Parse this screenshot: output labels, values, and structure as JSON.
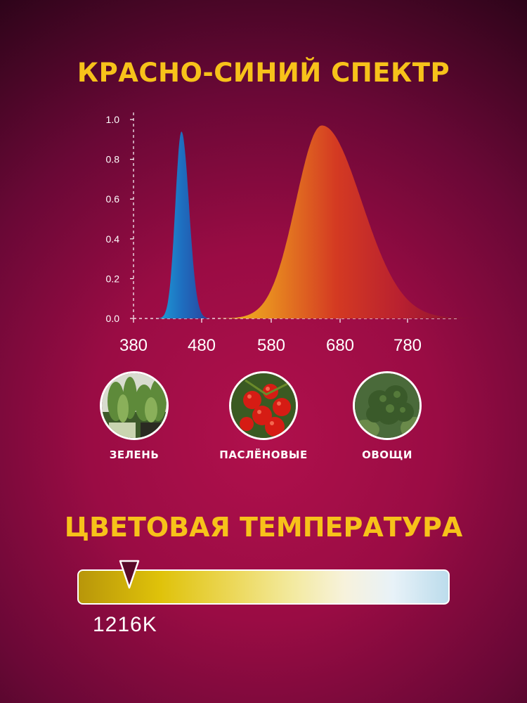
{
  "spectrum_title": "КРАСНО-СИНИЙ СПЕКТР",
  "chart_data": {
    "type": "area",
    "x_ticks": [
      "380",
      "480",
      "580",
      "680",
      "780"
    ],
    "y_ticks": [
      "0.0",
      "0.2",
      "0.4",
      "0.6",
      "0.8",
      "1.0"
    ],
    "xlim": [
      340,
      870
    ],
    "ylim": [
      0,
      1.0
    ],
    "series": [
      {
        "color_start": "#1e6fc0",
        "color_end": "#2a3f9a",
        "peak_x": 450,
        "peak_y": 0.94,
        "left_sigma": 9,
        "right_sigma": 11
      },
      {
        "color_start": "#e8b020",
        "color_end": "#9a1838",
        "peak_x": 655,
        "peak_y": 0.97,
        "left_sigma": 38,
        "right_sigma": 58
      }
    ]
  },
  "plants": [
    {
      "label": "ЗЕЛЕНЬ",
      "icon": "herbs-photo"
    },
    {
      "label": "ПАСЛЁНОВЫЕ",
      "icon": "tomatoes-photo"
    },
    {
      "label": "ОВОЩИ",
      "icon": "broccoli-photo"
    }
  ],
  "temperature": {
    "title": "ЦВЕТОВАЯ ТЕМПЕРАТУРА",
    "value": "1216K",
    "marker_color": "#5a0a2a",
    "level": 0.14
  }
}
